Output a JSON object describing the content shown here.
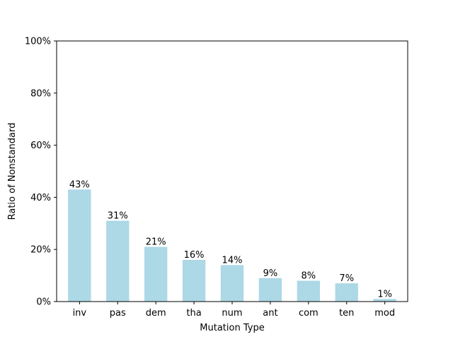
{
  "chart_data": {
    "type": "bar",
    "categories": [
      "inv",
      "pas",
      "dem",
      "tha",
      "num",
      "ant",
      "com",
      "ten",
      "mod"
    ],
    "values": [
      43,
      31,
      21,
      16,
      14,
      9,
      8,
      7,
      1
    ],
    "data_labels": [
      "43%",
      "31%",
      "21%",
      "16%",
      "14%",
      "9%",
      "8%",
      "7%",
      "1%"
    ],
    "xlabel": "Mutation Type",
    "ylabel": "Ratio of Nonstandard",
    "ylim": [
      0,
      100
    ],
    "yticks": [
      0,
      20,
      40,
      60,
      80,
      100
    ],
    "ytick_labels": [
      "0%",
      "20%",
      "40%",
      "60%",
      "80%",
      "100%"
    ],
    "grid": false,
    "colors": {
      "bar": "#add8e6",
      "axis": "#000000"
    }
  }
}
